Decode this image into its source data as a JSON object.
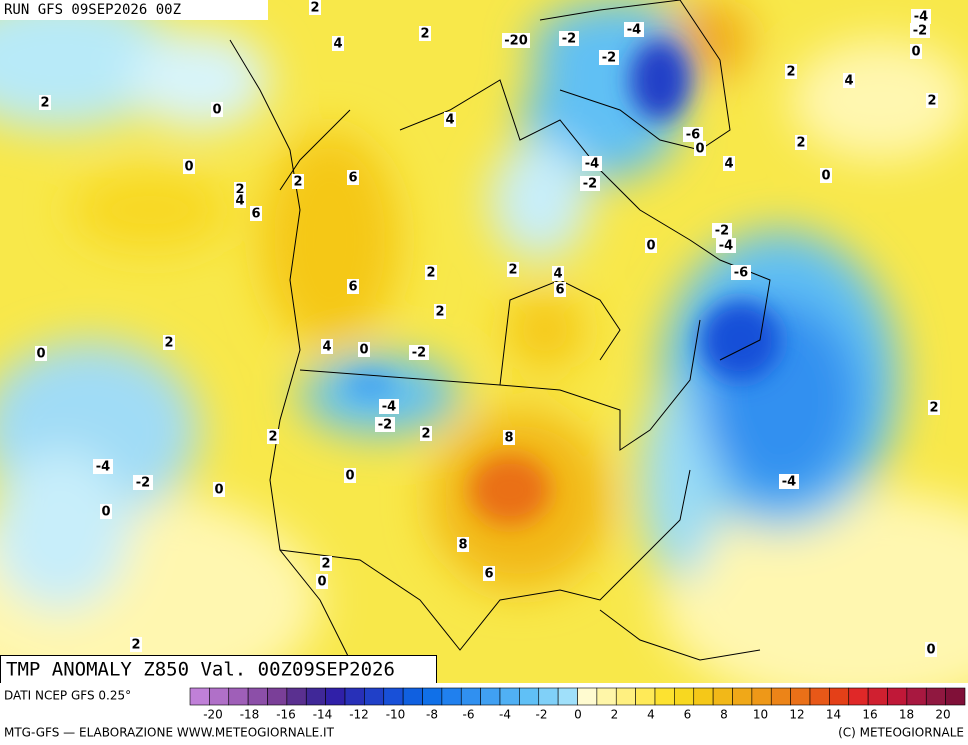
{
  "header": {
    "run": "RUN GFS 09SEP2026 00Z",
    "title": "TMP ANOMALY Z850 Val. 00Z09SEP2026"
  },
  "footer": {
    "source": "DATI NCEP GFS 0.25°",
    "credit": "MTG-GFS — ELABORAZIONE WWW.METEOGIORNALE.IT",
    "copyright": "(C) METEOGIORNALE"
  },
  "colorbar": {
    "ticks": [
      -20,
      -18,
      -16,
      -14,
      -12,
      -10,
      -8,
      -6,
      -4,
      -2,
      0,
      2,
      4,
      6,
      8,
      10,
      12,
      14,
      16,
      18,
      20
    ],
    "colors": [
      "#c080d8",
      "#b070c8",
      "#9f5fb8",
      "#8c4fa8",
      "#7a3f98",
      "#5a3090",
      "#402898",
      "#3020a8",
      "#2830b8",
      "#2040c8",
      "#1850d8",
      "#1060e0",
      "#1070e8",
      "#2080ee",
      "#3090f0",
      "#40a0f2",
      "#50b0f4",
      "#60c0f6",
      "#80d0f8",
      "#a0e0fa",
      "#fffbd0",
      "#fff6a8",
      "#fff080",
      "#ffea58",
      "#fde230",
      "#f8d820",
      "#f5c818",
      "#f2b818",
      "#f0a818",
      "#ee9818",
      "#ec8418",
      "#ea7018",
      "#e85818",
      "#e44018",
      "#e02828",
      "#d02030",
      "#c01838",
      "#a81840",
      "#901840",
      "#801038"
    ]
  },
  "contour_labels": [
    2,
    4,
    2,
    -20,
    -2,
    -4,
    -2,
    -4,
    -2,
    0,
    2,
    4,
    2,
    2,
    0,
    4,
    -6,
    0,
    2,
    4,
    -4,
    -2,
    0,
    0,
    2,
    2,
    6,
    4,
    6,
    -2,
    -4,
    0,
    -6,
    2,
    2,
    4,
    6,
    6,
    2,
    0,
    2,
    4,
    0,
    -2,
    -4,
    -2,
    2,
    2,
    2,
    8,
    -4,
    -2,
    0,
    0,
    -4,
    0,
    8,
    2,
    0,
    6,
    2,
    0
  ]
}
